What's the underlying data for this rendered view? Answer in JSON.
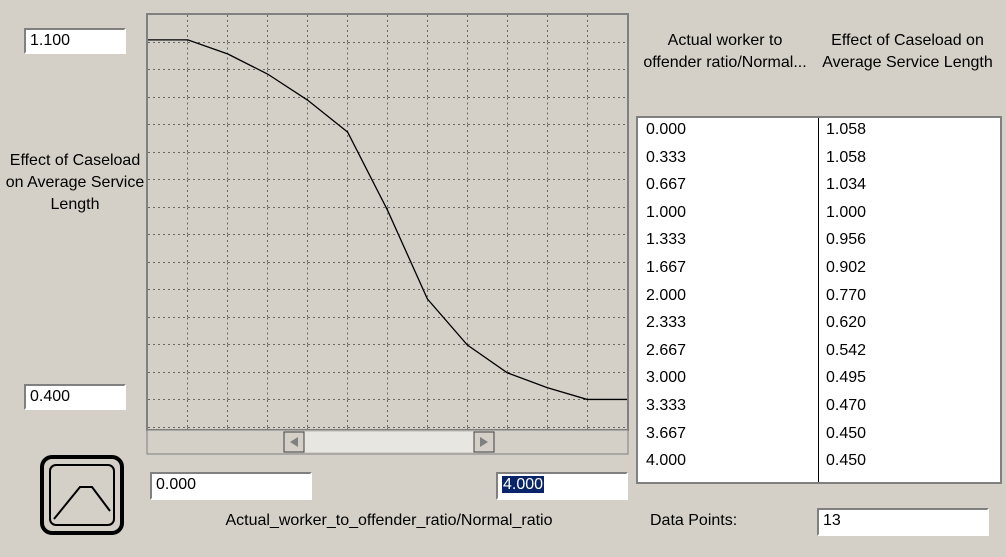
{
  "chart_data": {
    "type": "line",
    "x": [
      0,
      0.333,
      0.667,
      1,
      1.333,
      1.667,
      2,
      2.333,
      2.667,
      3,
      3.333,
      3.667,
      4
    ],
    "x_labels": [
      "0.000",
      "0.333",
      "0.667",
      "1.000",
      "1.333",
      "1.667",
      "2.000",
      "2.333",
      "2.667",
      "3.000",
      "3.333",
      "3.667",
      "4.000"
    ],
    "values": [
      1.058,
      1.058,
      1.034,
      1,
      0.956,
      0.902,
      0.77,
      0.62,
      0.542,
      0.495,
      0.47,
      0.45,
      0.45
    ],
    "value_labels": [
      "1.058",
      "1.058",
      "1.034",
      "1.000",
      "0.956",
      "0.902",
      "0.770",
      "0.620",
      "0.542",
      "0.495",
      "0.470",
      "0.450",
      "0.450"
    ],
    "color": "#000000",
    "xlim": [
      0,
      4
    ],
    "ylim": [
      0.4,
      1.1
    ],
    "xticks": [
      {
        "value": 0,
        "label": "0.000"
      },
      {
        "value": 4,
        "label": "4.000"
      }
    ],
    "yticks": [
      {
        "value": 0.4,
        "label": "0.400"
      },
      {
        "value": 1.1,
        "label": "1.100"
      }
    ],
    "x_label": "Actual_worker_to_offender_ratio/Normal_ratio",
    "y_label": "Effect of Caseload on Average Service Length"
  },
  "table": {
    "columns": [
      "Actual worker to offender ratio/Normal...",
      "Effect of Caseload on Average Service Length"
    ]
  },
  "data_points_label": "Data Points:",
  "data_points": 13
}
